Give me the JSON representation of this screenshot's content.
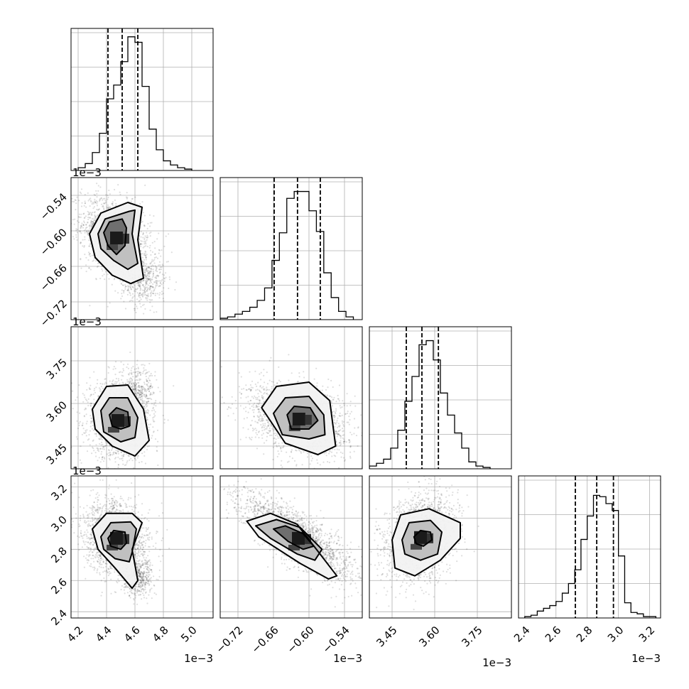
{
  "chart_data": {
    "type": "corner",
    "grid": true,
    "params": [
      {
        "range": [
          4.15,
          5.15
        ],
        "ticks": [
          4.2,
          4.4,
          4.6,
          4.8,
          5.0
        ],
        "tick_labels": [
          "4.2",
          "4.4",
          "4.6",
          "4.8",
          "5.0"
        ],
        "offset": "1e−3"
      },
      {
        "range": [
          -0.75,
          -0.51
        ],
        "ticks": [
          -0.72,
          -0.66,
          -0.6,
          -0.54
        ],
        "tick_labels": [
          "−0.72",
          "−0.66",
          "−0.60",
          "−0.54"
        ],
        "offset": "1e−3"
      },
      {
        "range": [
          3.37,
          3.87
        ],
        "ticks": [
          3.45,
          3.6,
          3.75
        ],
        "tick_labels": [
          "3.45",
          "3.60",
          "3.75"
        ],
        "offset": "1e−3"
      },
      {
        "range": [
          2.36,
          3.27
        ],
        "ticks": [
          2.4,
          2.6,
          2.8,
          3.0,
          3.2
        ],
        "tick_labels": [
          "2.4",
          "2.6",
          "2.8",
          "3.0",
          "3.2"
        ],
        "offset": "1e−3"
      }
    ],
    "histograms": [
      {
        "param": 0,
        "bin_edges": [
          4.2,
          4.25,
          4.3,
          4.35,
          4.4,
          4.45,
          4.5,
          4.55,
          4.6,
          4.65,
          4.7,
          4.75,
          4.8,
          4.85,
          4.9,
          4.95,
          5.0
        ],
        "counts": [
          0.02,
          0.05,
          0.13,
          0.27,
          0.52,
          0.62,
          0.79,
          0.97,
          0.93,
          0.61,
          0.3,
          0.15,
          0.07,
          0.04,
          0.02,
          0.01
        ],
        "quantiles": [
          4.41,
          4.51,
          4.62
        ],
        "ymax": 1.0
      },
      {
        "param": 1,
        "bin_edges": [
          -0.75,
          -0.7375,
          -0.725,
          -0.7125,
          -0.7,
          -0.6875,
          -0.675,
          -0.6625,
          -0.65,
          -0.6375,
          -0.625,
          -0.6125,
          -0.6,
          -0.5875,
          -0.575,
          -0.5625,
          -0.55,
          -0.5375,
          -0.525
        ],
        "counts": [
          0.01,
          0.02,
          0.04,
          0.06,
          0.09,
          0.14,
          0.23,
          0.43,
          0.63,
          0.88,
          0.93,
          0.93,
          0.79,
          0.64,
          0.34,
          0.16,
          0.06,
          0.02
        ],
        "quantiles": [
          -0.6588,
          -0.6194,
          -0.5809
        ],
        "ymax": 1.0
      },
      {
        "param": 2,
        "bin_edges": [
          3.37,
          3.395,
          3.42,
          3.445,
          3.47,
          3.495,
          3.52,
          3.545,
          3.57,
          3.595,
          3.62,
          3.645,
          3.67,
          3.695,
          3.72,
          3.745,
          3.77,
          3.795
        ],
        "counts": [
          0.02,
          0.04,
          0.07,
          0.15,
          0.28,
          0.49,
          0.67,
          0.9,
          0.93,
          0.79,
          0.55,
          0.39,
          0.26,
          0.15,
          0.05,
          0.02,
          0.01
        ],
        "quantiles": [
          3.5,
          3.555,
          3.613
        ],
        "ymax": 1.0
      },
      {
        "param": 3,
        "bin_edges": [
          2.4,
          2.44,
          2.48,
          2.52,
          2.56,
          2.6,
          2.64,
          2.68,
          2.72,
          2.76,
          2.8,
          2.84,
          2.88,
          2.92,
          2.96,
          3.0,
          3.04,
          3.08,
          3.12,
          3.16,
          3.2,
          3.24
        ],
        "counts": [
          0.01,
          0.02,
          0.05,
          0.07,
          0.09,
          0.12,
          0.18,
          0.25,
          0.35,
          0.57,
          0.74,
          0.89,
          0.88,
          0.83,
          0.78,
          0.45,
          0.11,
          0.04,
          0.03,
          0.01,
          0.01
        ],
        "quantiles": [
          2.724,
          2.861,
          2.968
        ],
        "ymax": 1.0
      }
    ],
    "scatter_panels": [
      {
        "x_param": 0,
        "y_param": 1,
        "mean": [
          4.47,
          -0.612
        ],
        "sd": [
          0.09,
          0.025
        ],
        "corr": -0.35,
        "extra_mean": [
          4.66,
          -0.685
        ],
        "extra_sd": [
          0.08,
          0.02
        ],
        "contours": [
          [
            [
              4.38,
              -0.603
            ],
            [
              4.42,
              -0.585
            ],
            [
              4.51,
              -0.58
            ],
            [
              4.54,
              -0.595
            ],
            [
              4.53,
              -0.625
            ],
            [
              4.47,
              -0.64
            ],
            [
              4.41,
              -0.625
            ]
          ],
          [
            [
              4.34,
              -0.605
            ],
            [
              4.39,
              -0.58
            ],
            [
              4.56,
              -0.567
            ],
            [
              4.6,
              -0.565
            ],
            [
              4.58,
              -0.605
            ],
            [
              4.62,
              -0.655
            ],
            [
              4.55,
              -0.665
            ],
            [
              4.45,
              -0.65
            ],
            [
              4.36,
              -0.63
            ]
          ],
          [
            [
              4.28,
              -0.605
            ],
            [
              4.36,
              -0.57
            ],
            [
              4.55,
              -0.552
            ],
            [
              4.65,
              -0.56
            ],
            [
              4.62,
              -0.615
            ],
            [
              4.66,
              -0.68
            ],
            [
              4.57,
              -0.689
            ],
            [
              4.44,
              -0.675
            ],
            [
              4.32,
              -0.645
            ]
          ]
        ]
      },
      {
        "x_param": 0,
        "y_param": 2,
        "mean": [
          4.48,
          3.54
        ],
        "sd": [
          0.08,
          0.05
        ],
        "corr": -0.1,
        "extra_mean": [
          4.62,
          3.63
        ],
        "extra_sd": [
          0.06,
          0.05
        ],
        "contours": [
          [
            [
              4.42,
              3.56
            ],
            [
              4.47,
              3.585
            ],
            [
              4.55,
              3.57
            ],
            [
              4.56,
              3.52
            ],
            [
              4.5,
              3.51
            ],
            [
              4.44,
              3.52
            ]
          ],
          [
            [
              4.36,
              3.575
            ],
            [
              4.42,
              3.62
            ],
            [
              4.55,
              3.62
            ],
            [
              4.62,
              3.55
            ],
            [
              4.6,
              3.48
            ],
            [
              4.5,
              3.465
            ],
            [
              4.38,
              3.5
            ]
          ],
          [
            [
              4.3,
              3.58
            ],
            [
              4.4,
              3.66
            ],
            [
              4.55,
              3.665
            ],
            [
              4.66,
              3.58
            ],
            [
              4.7,
              3.47
            ],
            [
              4.6,
              3.415
            ],
            [
              4.44,
              3.45
            ],
            [
              4.32,
              3.51
            ]
          ]
        ]
      },
      {
        "x_param": 1,
        "y_param": 2,
        "mean": [
          -0.617,
          3.545
        ],
        "sd": [
          0.03,
          0.045
        ],
        "corr": -0.3,
        "contours": [
          [
            [
              -0.637,
              3.56
            ],
            [
              -0.625,
              3.59
            ],
            [
              -0.598,
              3.585
            ],
            [
              -0.585,
              3.54
            ],
            [
              -0.6,
              3.51
            ],
            [
              -0.63,
              3.51
            ]
          ],
          [
            [
              -0.66,
              3.565
            ],
            [
              -0.64,
              3.62
            ],
            [
              -0.6,
              3.625
            ],
            [
              -0.575,
              3.56
            ],
            [
              -0.573,
              3.49
            ],
            [
              -0.6,
              3.475
            ],
            [
              -0.645,
              3.49
            ]
          ],
          [
            [
              -0.68,
              3.585
            ],
            [
              -0.655,
              3.66
            ],
            [
              -0.6,
              3.675
            ],
            [
              -0.565,
              3.61
            ],
            [
              -0.555,
              3.45
            ],
            [
              -0.585,
              3.42
            ],
            [
              -0.64,
              3.46
            ]
          ]
        ]
      },
      {
        "x_param": 0,
        "y_param": 3,
        "mean": [
          4.47,
          2.87
        ],
        "sd": [
          0.085,
          0.09
        ],
        "corr": -0.2,
        "extra_mean": [
          4.62,
          2.62
        ],
        "extra_sd": [
          0.05,
          0.06
        ],
        "contours": [
          [
            [
              4.41,
              2.87
            ],
            [
              4.45,
              2.92
            ],
            [
              4.53,
              2.91
            ],
            [
              4.54,
              2.84
            ],
            [
              4.5,
              2.8
            ],
            [
              4.43,
              2.82
            ]
          ],
          [
            [
              4.36,
              2.88
            ],
            [
              4.43,
              2.97
            ],
            [
              4.57,
              2.975
            ],
            [
              4.61,
              2.93
            ],
            [
              4.58,
              2.78
            ],
            [
              4.56,
              2.72
            ],
            [
              4.46,
              2.74
            ],
            [
              4.38,
              2.8
            ]
          ],
          [
            [
              4.3,
              2.93
            ],
            [
              4.4,
              3.03
            ],
            [
              4.58,
              3.03
            ],
            [
              4.65,
              2.97
            ],
            [
              4.58,
              2.8
            ],
            [
              4.62,
              2.6
            ],
            [
              4.58,
              2.55
            ],
            [
              4.46,
              2.68
            ],
            [
              4.34,
              2.8
            ]
          ]
        ]
      },
      {
        "x_param": 1,
        "y_param": 3,
        "mean": [
          -0.618,
          2.87
        ],
        "sd": [
          0.035,
          0.1
        ],
        "corr": -0.8,
        "contours": [
          [
            [
              -0.66,
              2.93
            ],
            [
              -0.64,
              2.95
            ],
            [
              -0.61,
              2.9
            ],
            [
              -0.592,
              2.82
            ],
            [
              -0.61,
              2.8
            ],
            [
              -0.635,
              2.85
            ]
          ],
          [
            [
              -0.69,
              2.95
            ],
            [
              -0.655,
              2.99
            ],
            [
              -0.615,
              2.94
            ],
            [
              -0.578,
              2.8
            ],
            [
              -0.59,
              2.73
            ],
            [
              -0.62,
              2.77
            ],
            [
              -0.665,
              2.87
            ]
          ],
          [
            [
              -0.705,
              2.98
            ],
            [
              -0.665,
              3.03
            ],
            [
              -0.62,
              2.96
            ],
            [
              -0.553,
              2.63
            ],
            [
              -0.567,
              2.61
            ],
            [
              -0.615,
              2.71
            ],
            [
              -0.685,
              2.88
            ]
          ]
        ]
      },
      {
        "x_param": 2,
        "y_param": 3,
        "mean": [
          3.55,
          2.875
        ],
        "sd": [
          0.045,
          0.1
        ],
        "corr": 0.25,
        "contours": [
          [
            [
              3.527,
              2.88
            ],
            [
              3.55,
              2.92
            ],
            [
              3.585,
              2.91
            ],
            [
              3.59,
              2.86
            ],
            [
              3.56,
              2.82
            ],
            [
              3.535,
              2.835
            ]
          ],
          [
            [
              3.485,
              2.86
            ],
            [
              3.51,
              2.97
            ],
            [
              3.585,
              2.985
            ],
            [
              3.625,
              2.91
            ],
            [
              3.61,
              2.77
            ],
            [
              3.55,
              2.73
            ],
            [
              3.495,
              2.77
            ]
          ],
          [
            [
              3.45,
              2.86
            ],
            [
              3.48,
              3.02
            ],
            [
              3.58,
              3.06
            ],
            [
              3.69,
              2.97
            ],
            [
              3.69,
              2.87
            ],
            [
              3.62,
              2.73
            ],
            [
              3.53,
              2.63
            ],
            [
              3.46,
              2.68
            ]
          ]
        ]
      }
    ]
  }
}
